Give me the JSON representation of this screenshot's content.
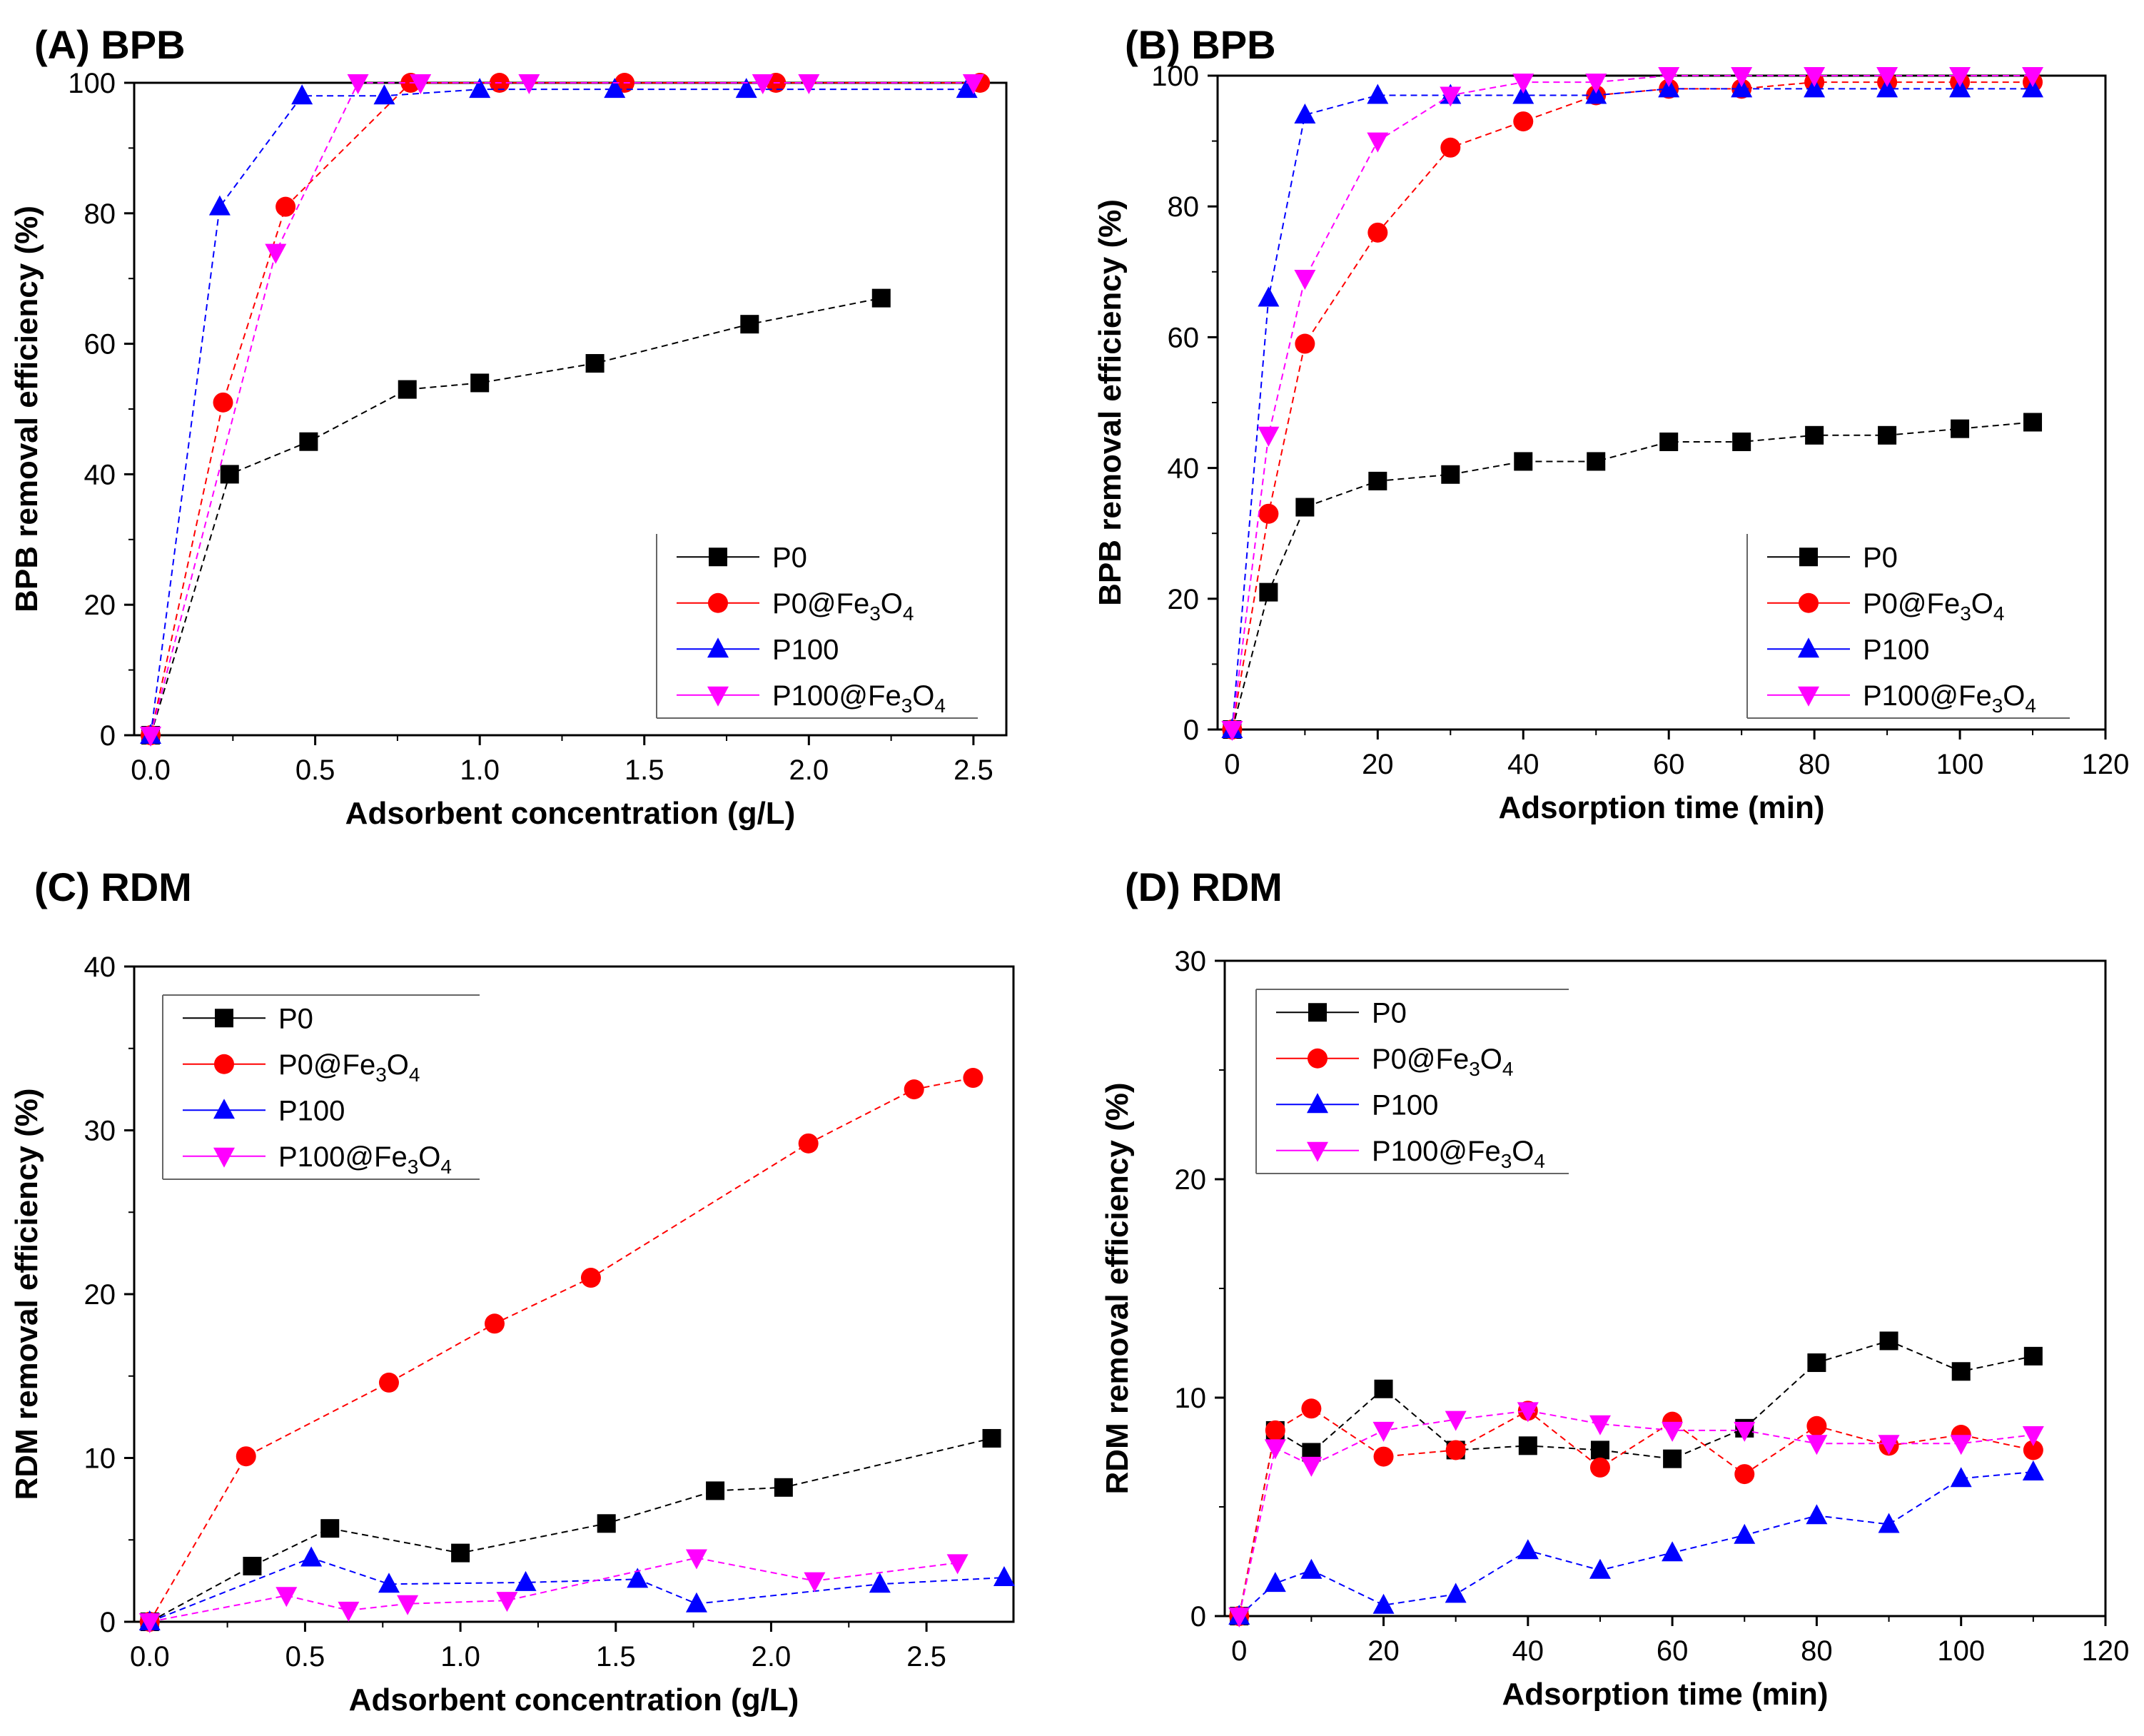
{
  "chart_data": [
    {
      "id": "A",
      "type": "line",
      "title": "(A) BPB",
      "xlabel": "Adsorbent concentration (g/L)",
      "ylabel": "BPB removal efficiency (%)",
      "xlim": [
        -0.05,
        2.6
      ],
      "ylim": [
        0,
        100
      ],
      "xticks": [
        0.0,
        0.5,
        1.0,
        1.5,
        2.0,
        2.5
      ],
      "xtick_labels": [
        "0.0",
        "0.5",
        "1.0",
        "1.5",
        "2.0",
        "2.5"
      ],
      "yticks": [
        0,
        20,
        40,
        60,
        80,
        100
      ],
      "ytick_labels": [
        "0",
        "20",
        "40",
        "60",
        "80",
        "100"
      ],
      "legend_position": "lower-right",
      "series": [
        {
          "name": "P0",
          "label_main": "P0",
          "label_sub": "",
          "label_tail": "",
          "marker": "square",
          "color": "#000000",
          "x": [
            0,
            0.24,
            0.48,
            0.78,
            1.0,
            1.35,
            1.82,
            2.22
          ],
          "y": [
            0,
            40,
            45,
            53,
            54,
            57,
            63,
            67
          ]
        },
        {
          "name": "P0@Fe3O4",
          "label_main": "P0@Fe",
          "label_sub": "3",
          "label_tail": "O",
          "label_sub2": "4",
          "marker": "circle",
          "color": "#ff0000",
          "x": [
            0,
            0.22,
            0.41,
            0.79,
            1.06,
            1.44,
            1.9,
            2.52
          ],
          "y": [
            0,
            51,
            81,
            100,
            100,
            100,
            100,
            100
          ]
        },
        {
          "name": "P100",
          "label_main": "P100",
          "label_sub": "",
          "label_tail": "",
          "marker": "triangle-up",
          "color": "#0000ff",
          "x": [
            0,
            0.21,
            0.46,
            0.71,
            1.0,
            1.41,
            1.81,
            2.48
          ],
          "y": [
            0,
            81,
            98,
            98,
            99,
            99,
            99,
            99
          ]
        },
        {
          "name": "P100@Fe3O4",
          "label_main": "P100@Fe",
          "label_sub": "3",
          "label_tail": "O",
          "label_sub2": "4",
          "marker": "triangle-down",
          "color": "#ff00ff",
          "x": [
            0,
            0.38,
            0.63,
            0.82,
            1.15,
            1.86,
            2.0,
            2.5
          ],
          "y": [
            0,
            74,
            100,
            100,
            100,
            100,
            100,
            100
          ]
        }
      ]
    },
    {
      "id": "B",
      "type": "line",
      "title": "(B) BPB",
      "xlabel": "Adsorption time (min)",
      "ylabel": "BPB removal efficiency (%)",
      "xlim": [
        -2,
        120
      ],
      "ylim": [
        0,
        100
      ],
      "xticks": [
        0,
        20,
        40,
        60,
        80,
        100,
        120
      ],
      "xtick_labels": [
        "0",
        "20",
        "40",
        "60",
        "80",
        "100",
        "120"
      ],
      "yticks": [
        0,
        20,
        40,
        60,
        80,
        100
      ],
      "ytick_labels": [
        "0",
        "20",
        "40",
        "60",
        "80",
        "100"
      ],
      "legend_position": "lower-right",
      "series": [
        {
          "name": "P0",
          "label_main": "P0",
          "label_sub": "",
          "label_tail": "",
          "marker": "square",
          "color": "#000000",
          "x": [
            0,
            5,
            10,
            20,
            30,
            40,
            50,
            60,
            70,
            80,
            90,
            100,
            110
          ],
          "y": [
            0,
            21,
            34,
            38,
            39,
            41,
            41,
            44,
            44,
            45,
            45,
            46,
            47
          ]
        },
        {
          "name": "P0@Fe3O4",
          "label_main": "P0@Fe",
          "label_sub": "3",
          "label_tail": "O",
          "label_sub2": "4",
          "marker": "circle",
          "color": "#ff0000",
          "x": [
            0,
            5,
            10,
            20,
            30,
            40,
            50,
            60,
            70,
            80,
            90,
            100,
            110
          ],
          "y": [
            0,
            33,
            59,
            76,
            89,
            93,
            97,
            98,
            98,
            99,
            99,
            99,
            99
          ]
        },
        {
          "name": "P100",
          "label_main": "P100",
          "label_sub": "",
          "label_tail": "",
          "marker": "triangle-up",
          "color": "#0000ff",
          "x": [
            0,
            5,
            10,
            20,
            30,
            40,
            50,
            60,
            70,
            80,
            90,
            100,
            110
          ],
          "y": [
            0,
            66,
            94,
            97,
            97,
            97,
            97,
            98,
            98,
            98,
            98,
            98,
            98
          ]
        },
        {
          "name": "P100@Fe3O4",
          "label_main": "P100@Fe",
          "label_sub": "3",
          "label_tail": "O",
          "label_sub2": "4",
          "marker": "triangle-down",
          "color": "#ff00ff",
          "x": [
            0,
            5,
            10,
            20,
            30,
            40,
            50,
            60,
            70,
            80,
            90,
            100,
            110
          ],
          "y": [
            0,
            45,
            69,
            90,
            97,
            99,
            99,
            100,
            100,
            100,
            100,
            100,
            100
          ]
        }
      ]
    },
    {
      "id": "C",
      "type": "line",
      "title": "(C) RDM",
      "xlabel": "Adsorbent concentration (g/L)",
      "ylabel": "RDM removal efficiency (%)",
      "xlim": [
        -0.05,
        2.78
      ],
      "ylim": [
        0,
        40
      ],
      "xticks": [
        0.0,
        0.5,
        1.0,
        1.5,
        2.0,
        2.5
      ],
      "xtick_labels": [
        "0.0",
        "0.5",
        "1.0",
        "1.5",
        "2.0",
        "2.5"
      ],
      "yticks": [
        0,
        10,
        20,
        30,
        40
      ],
      "ytick_labels": [
        "0",
        "10",
        "20",
        "30",
        "40"
      ],
      "legend_position": "upper-left",
      "series": [
        {
          "name": "P0",
          "label_main": "P0",
          "label_sub": "",
          "label_tail": "",
          "marker": "square",
          "color": "#000000",
          "x": [
            0,
            0.33,
            0.58,
            1.0,
            1.47,
            1.82,
            2.04,
            2.71
          ],
          "y": [
            0,
            3.4,
            5.7,
            4.2,
            6.0,
            8.0,
            8.2,
            11.2
          ]
        },
        {
          "name": "P0@Fe3O4",
          "label_main": "P0@Fe",
          "label_sub": "3",
          "label_tail": "O",
          "label_sub2": "4",
          "marker": "circle",
          "color": "#ff0000",
          "x": [
            0,
            0.31,
            0.77,
            1.11,
            1.42,
            2.12,
            2.46,
            2.65
          ],
          "y": [
            0,
            10.1,
            14.6,
            18.2,
            21.0,
            29.2,
            32.5,
            33.2
          ]
        },
        {
          "name": "P100",
          "label_main": "P100",
          "label_sub": "",
          "label_tail": "",
          "marker": "triangle-up",
          "color": "#0000ff",
          "x": [
            0,
            0.52,
            0.77,
            1.21,
            1.57,
            1.76,
            2.35,
            2.75
          ],
          "y": [
            0,
            3.9,
            2.3,
            2.4,
            2.6,
            1.1,
            2.3,
            2.7
          ]
        },
        {
          "name": "P100@Fe3O4",
          "label_main": "P100@Fe",
          "label_sub": "3",
          "label_tail": "O",
          "label_sub2": "4",
          "marker": "triangle-down",
          "color": "#ff00ff",
          "x": [
            0,
            0.44,
            0.64,
            0.83,
            1.15,
            1.76,
            2.14,
            2.6
          ],
          "y": [
            0,
            1.6,
            0.7,
            1.1,
            1.3,
            3.9,
            2.5,
            3.6
          ]
        }
      ]
    },
    {
      "id": "D",
      "type": "line",
      "title": "(D) RDM",
      "xlabel": "Adsorption time (min)",
      "ylabel": "RDM removal efficiency (%)",
      "xlim": [
        -2,
        120
      ],
      "ylim": [
        0,
        30
      ],
      "xticks": [
        0,
        20,
        40,
        60,
        80,
        100,
        120
      ],
      "xtick_labels": [
        "0",
        "20",
        "40",
        "60",
        "80",
        "100",
        "120"
      ],
      "yticks": [
        0,
        10,
        20,
        30
      ],
      "ytick_labels": [
        "0",
        "10",
        "20",
        "30"
      ],
      "legend_position": "upper-left",
      "series": [
        {
          "name": "P0",
          "label_main": "P0",
          "label_sub": "",
          "label_tail": "",
          "marker": "square",
          "color": "#000000",
          "x": [
            0,
            5,
            10,
            20,
            30,
            40,
            50,
            60,
            70,
            80,
            90,
            100,
            110
          ],
          "y": [
            0,
            8.5,
            7.5,
            10.4,
            7.6,
            7.8,
            7.6,
            7.2,
            8.6,
            11.6,
            12.6,
            11.2,
            11.9
          ]
        },
        {
          "name": "P0@Fe3O4",
          "label_main": "P0@Fe",
          "label_sub": "3",
          "label_tail": "O",
          "label_sub2": "4",
          "marker": "circle",
          "color": "#ff0000",
          "x": [
            0,
            5,
            10,
            20,
            30,
            40,
            50,
            60,
            70,
            80,
            90,
            100,
            110
          ],
          "y": [
            0,
            8.5,
            9.5,
            7.3,
            7.6,
            9.4,
            6.8,
            8.9,
            6.5,
            8.7,
            7.8,
            8.3,
            7.6
          ]
        },
        {
          "name": "P100",
          "label_main": "P100",
          "label_sub": "",
          "label_tail": "",
          "marker": "triangle-up",
          "color": "#0000ff",
          "x": [
            0,
            5,
            10,
            20,
            30,
            40,
            50,
            60,
            70,
            80,
            90,
            100,
            110
          ],
          "y": [
            0,
            1.5,
            2.1,
            0.5,
            1.0,
            3.0,
            2.1,
            2.9,
            3.7,
            4.6,
            4.2,
            6.3,
            6.6
          ]
        },
        {
          "name": "P100@Fe3O4",
          "label_main": "P100@Fe",
          "label_sub": "3",
          "label_tail": "O",
          "label_sub2": "4",
          "marker": "triangle-down",
          "color": "#ff00ff",
          "x": [
            0,
            5,
            10,
            20,
            30,
            40,
            50,
            60,
            70,
            80,
            90,
            100,
            110
          ],
          "y": [
            0,
            7.7,
            6.9,
            8.5,
            9.0,
            9.4,
            8.8,
            8.5,
            8.5,
            7.9,
            7.9,
            7.9,
            8.3
          ]
        }
      ]
    }
  ]
}
